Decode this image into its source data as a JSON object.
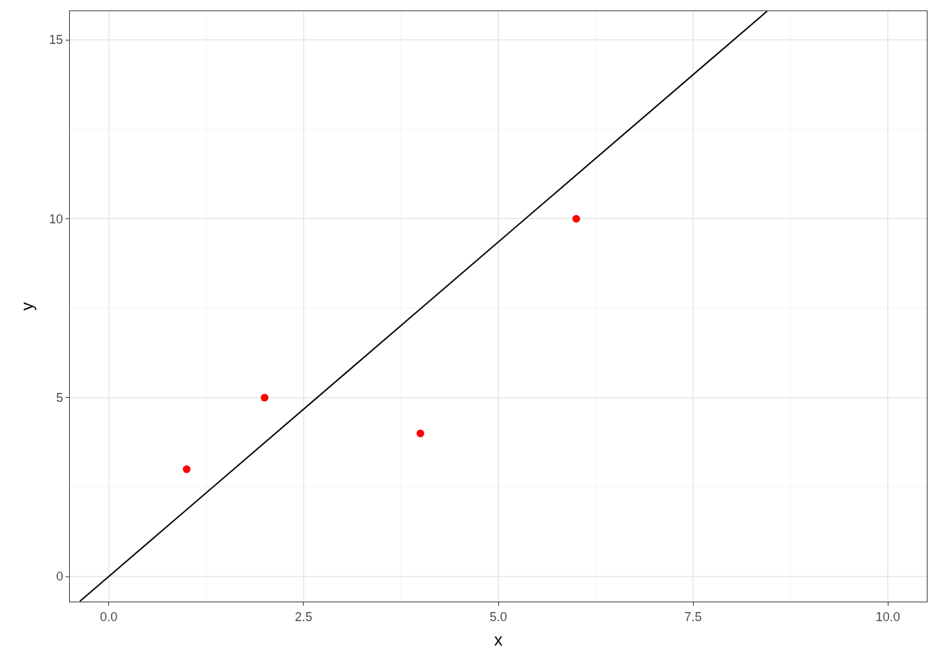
{
  "chart_data": {
    "type": "scatter",
    "xlabel": "x",
    "ylabel": "y",
    "xlim": [
      -0.5,
      10.5
    ],
    "xticks": [
      {
        "value": 0,
        "label": "0.0"
      },
      {
        "value": 2.5,
        "label": "2.5"
      },
      {
        "value": 5,
        "label": "5.0"
      },
      {
        "value": 7.5,
        "label": "7.5"
      },
      {
        "value": 10,
        "label": "10.0"
      }
    ],
    "ylim": [
      -0.7,
      15.8
    ],
    "yticks": [
      0,
      5,
      10,
      15
    ],
    "grid": true,
    "marker": "circle",
    "series": [
      {
        "color": "#ff0000",
        "x": [
          1,
          2,
          4,
          6
        ],
        "values": [
          3,
          5,
          4,
          10
        ]
      },
      {
        "type": "line",
        "color": "#000000",
        "x": [
          -0.37,
          8.45
        ],
        "values": [
          -0.69,
          15.8
        ],
        "marker": "none",
        "line_style": "solid"
      }
    ]
  }
}
